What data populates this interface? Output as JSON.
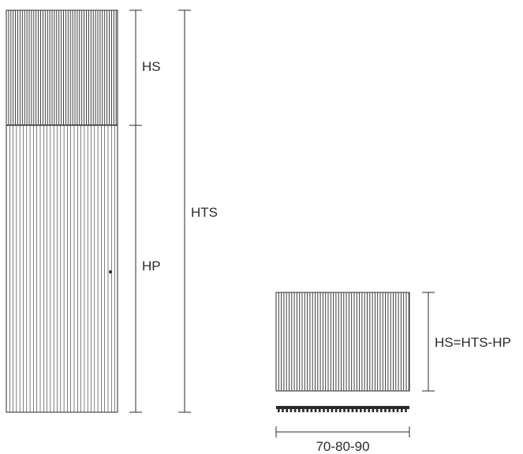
{
  "labels": {
    "hs": "HS",
    "hp": "HP",
    "hts": "HTS",
    "hs_formula": "HS=HTS-HP",
    "width": "70-80-90"
  },
  "colors": {
    "line": "#2b2b2b",
    "fill": "#ffffff"
  }
}
